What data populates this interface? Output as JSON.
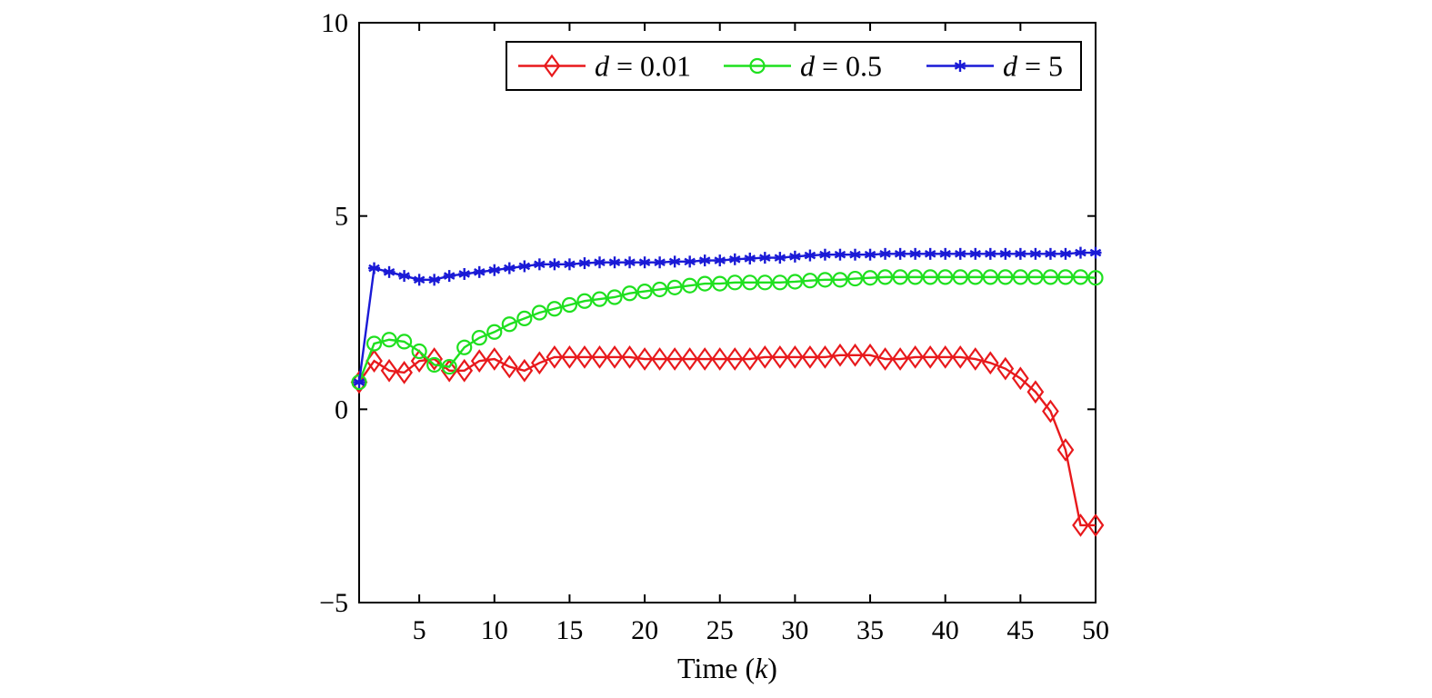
{
  "chart_data": {
    "type": "line",
    "title": "",
    "xlabel": "Time (k)",
    "xlabel_parts": {
      "prefix": "Time (",
      "var": "k",
      "suffix": ")"
    },
    "ylabel": "",
    "xlim": [
      1,
      50
    ],
    "ylim": [
      -5,
      10
    ],
    "xticks": [
      5,
      10,
      15,
      20,
      25,
      30,
      35,
      40,
      45,
      50
    ],
    "xtick_labels": [
      "5",
      "10",
      "15",
      "20",
      "25",
      "30",
      "35",
      "40",
      "45",
      "50"
    ],
    "yticks": [
      -5,
      0,
      5,
      10
    ],
    "ytick_labels": [
      "−5",
      "0",
      "5",
      "10"
    ],
    "grid": false,
    "legend_position": "top-right",
    "x": [
      1,
      2,
      3,
      4,
      5,
      6,
      7,
      8,
      9,
      10,
      11,
      12,
      13,
      14,
      15,
      16,
      17,
      18,
      19,
      20,
      21,
      22,
      23,
      24,
      25,
      26,
      27,
      28,
      29,
      30,
      31,
      32,
      33,
      34,
      35,
      36,
      37,
      38,
      39,
      40,
      41,
      42,
      43,
      44,
      45,
      46,
      47,
      48,
      49,
      50
    ],
    "series": [
      {
        "name": "d = 0.01",
        "label_var": "d",
        "label_value": " = 0.01",
        "color": "#e8191c",
        "marker": "diamond",
        "values": [
          0.7,
          1.25,
          1.0,
          0.95,
          1.25,
          1.3,
          1.0,
          1.0,
          1.25,
          1.3,
          1.1,
          1.0,
          1.2,
          1.35,
          1.35,
          1.35,
          1.35,
          1.35,
          1.35,
          1.3,
          1.3,
          1.3,
          1.3,
          1.3,
          1.3,
          1.3,
          1.3,
          1.35,
          1.35,
          1.35,
          1.35,
          1.35,
          1.4,
          1.4,
          1.4,
          1.3,
          1.3,
          1.35,
          1.35,
          1.35,
          1.35,
          1.3,
          1.2,
          1.05,
          0.8,
          0.45,
          -0.05,
          -1.05,
          -3.0,
          -3.0
        ]
      },
      {
        "name": "d = 0.5",
        "label_var": "d",
        "label_value": " = 0.5",
        "color": "#1fe01f",
        "marker": "circle",
        "values": [
          0.7,
          1.7,
          1.8,
          1.75,
          1.5,
          1.15,
          1.1,
          1.6,
          1.85,
          2.0,
          2.2,
          2.35,
          2.5,
          2.6,
          2.7,
          2.8,
          2.85,
          2.9,
          3.0,
          3.05,
          3.1,
          3.15,
          3.2,
          3.25,
          3.25,
          3.28,
          3.28,
          3.28,
          3.28,
          3.3,
          3.33,
          3.35,
          3.35,
          3.38,
          3.4,
          3.42,
          3.42,
          3.42,
          3.42,
          3.42,
          3.42,
          3.42,
          3.42,
          3.42,
          3.42,
          3.42,
          3.42,
          3.42,
          3.42,
          3.4
        ]
      },
      {
        "name": "d = 5",
        "label_var": "d",
        "label_value": " = 5",
        "color": "#1a1ad6",
        "marker": "star",
        "values": [
          0.7,
          3.65,
          3.55,
          3.45,
          3.35,
          3.35,
          3.45,
          3.5,
          3.55,
          3.6,
          3.65,
          3.7,
          3.75,
          3.75,
          3.75,
          3.78,
          3.8,
          3.8,
          3.8,
          3.8,
          3.8,
          3.82,
          3.82,
          3.85,
          3.85,
          3.88,
          3.9,
          3.92,
          3.92,
          3.95,
          3.98,
          4.0,
          4.0,
          4.0,
          4.0,
          4.02,
          4.02,
          4.02,
          4.02,
          4.02,
          4.02,
          4.02,
          4.02,
          4.02,
          4.02,
          4.02,
          4.02,
          4.02,
          4.05,
          4.05
        ]
      }
    ]
  }
}
